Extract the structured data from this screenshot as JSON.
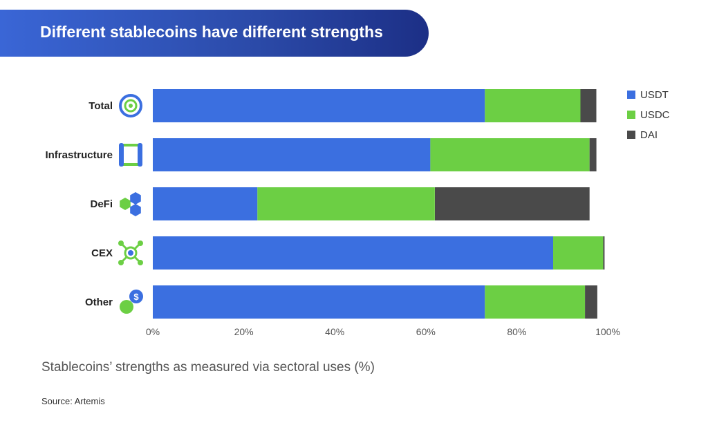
{
  "header": {
    "title": "Different stablecoins have different strengths"
  },
  "chart_data": {
    "type": "bar",
    "orientation": "horizontal",
    "stacked": true,
    "title": "Different stablecoins have different strengths",
    "subtitle": "Stablecoins’ strengths as measured via sectoral uses (%)",
    "source": "Source: Artemis",
    "categories": [
      "Total",
      "Infrastructure",
      "DeFi",
      "CEX",
      "Other"
    ],
    "category_icons": [
      "target-icon",
      "infrastructure-icon",
      "hexagons-icon",
      "network-icon",
      "coin-dollar-icon"
    ],
    "series": [
      {
        "name": "USDT",
        "color": "#3b6fe0",
        "values": [
          73,
          61,
          23,
          88,
          73
        ]
      },
      {
        "name": "USDC",
        "color": "#6ccf44",
        "values": [
          21,
          35,
          39,
          11,
          22
        ]
      },
      {
        "name": "DAI",
        "color": "#4a4a4a",
        "values": [
          3.5,
          1.5,
          34,
          0.3,
          2.7
        ]
      }
    ],
    "xlim": [
      0,
      100
    ],
    "xticks": [
      "0%",
      "20%",
      "40%",
      "60%",
      "80%",
      "100%"
    ],
    "legend": "top-right",
    "grid": false
  }
}
